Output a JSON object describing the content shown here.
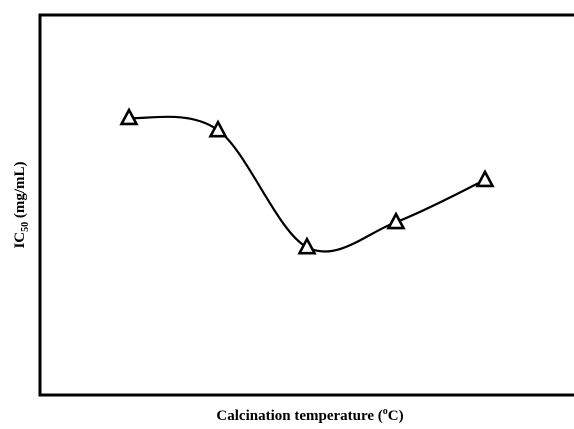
{
  "chart_data": {
    "type": "line",
    "x_label": {
      "main": "Calcination temperature (",
      "sup": "o",
      "rest": "C)"
    },
    "y_label": {
      "main": "IC",
      "sub": "50",
      "rest": " (mg/mL)"
    },
    "x": [
      1,
      2,
      3,
      4,
      5
    ],
    "series": [
      {
        "color": "#000000",
        "values": [
          72.9,
          69.7,
          38.9,
          45.5,
          56.6
        ]
      }
    ],
    "xlim": [
      0,
      6
    ],
    "ylim": [
      0,
      100
    ],
    "marker": "triangle",
    "smooth": true
  }
}
